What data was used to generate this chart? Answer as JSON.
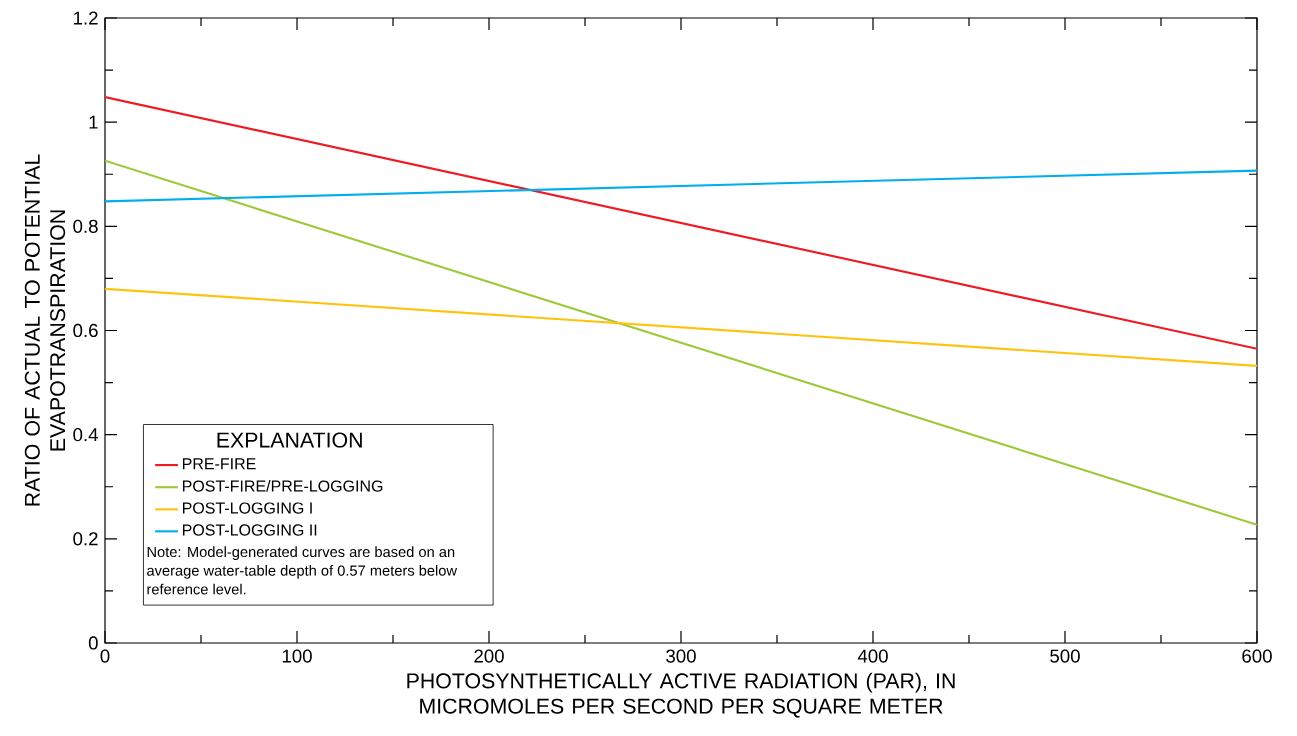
{
  "chart_data": {
    "type": "line",
    "xlabel": "PHOTOSYNTHETICALLY ACTIVE RADIATION (PAR), IN MICROMOLES PER SECOND PER SQUARE METER",
    "ylabel": "RATIO OF ACTUAL TO POTENTIAL EVAPOTRANSPIRATION",
    "legend_title": "EXPLANATION",
    "annotations": [
      "Note: Model-generated curves are based on an average water-table depth of 0.57 meters below reference level."
    ],
    "x": [
      0,
      600
    ],
    "series": [
      {
        "name": "PRE-FIRE",
        "color": "#ed1c24",
        "values": [
          1.048,
          0.565
        ]
      },
      {
        "name": "POST-FIRE/PRE-LOGGING",
        "color": "#9dc93b",
        "values": [
          0.926,
          0.227
        ]
      },
      {
        "name": "POST-LOGGING I",
        "color": "#ffc20e",
        "values": [
          0.68,
          0.532
        ]
      },
      {
        "name": "POST-LOGGING II",
        "color": "#00aeef",
        "values": [
          0.848,
          0.907
        ]
      }
    ],
    "xlim": [
      0,
      600
    ],
    "xticks": [
      0,
      100,
      200,
      300,
      400,
      500,
      600
    ],
    "ylim": [
      0,
      1.2
    ],
    "yticks": [
      0,
      0.2,
      0.4,
      0.6,
      0.8,
      1,
      1.2
    ],
    "grid": false,
    "legend": "bottom left",
    "marker": "none",
    "line_style": "solid"
  }
}
